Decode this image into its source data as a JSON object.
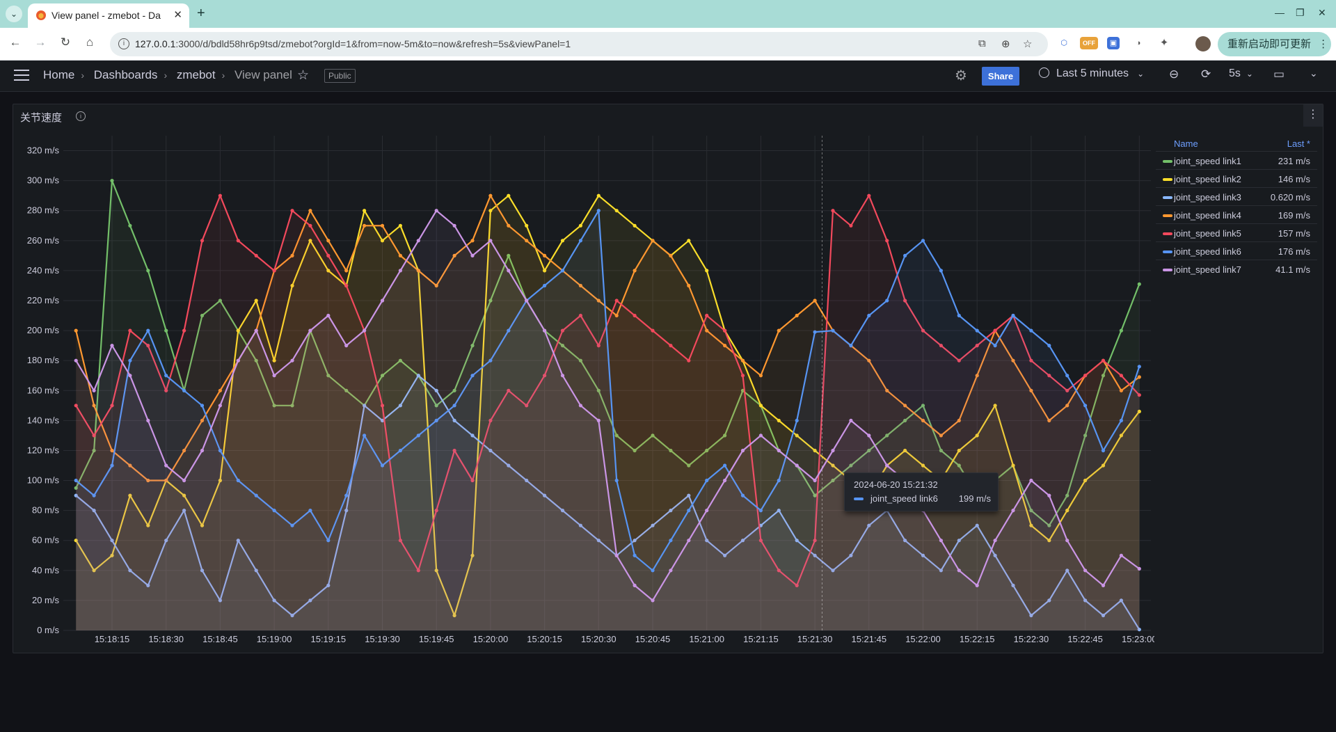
{
  "browser": {
    "tab_title": "View panel - zmebot - Da",
    "url_host": "127.0.0.1",
    "url_rest": ":3000/d/bdld58hr6p9tsd/zmebot?orgId=1&from=now-5m&to=now&refresh=5s&viewPanel=1",
    "update_button": "重新启动即可更新",
    "ext_off_badge": "OFF"
  },
  "grafana": {
    "breadcrumbs": [
      "Home",
      "Dashboards",
      "zmebot",
      "View panel"
    ],
    "public_badge": "Public",
    "share_label": "Share",
    "time_range": "Last 5 minutes",
    "refresh_interval": "5s"
  },
  "panel": {
    "title": "关节速度",
    "legend_header_name": "Name",
    "legend_header_last": "Last *",
    "tooltip": {
      "time": "2024-06-20 15:21:32",
      "series": "joint_speed link6",
      "value": "199 m/s"
    }
  },
  "chart_data": {
    "type": "line",
    "ylim": [
      0,
      330
    ],
    "yticks": [
      "0 m/s",
      "20 m/s",
      "40 m/s",
      "60 m/s",
      "80 m/s",
      "100 m/s",
      "120 m/s",
      "140 m/s",
      "160 m/s",
      "180 m/s",
      "200 m/s",
      "220 m/s",
      "240 m/s",
      "260 m/s",
      "280 m/s",
      "300 m/s",
      "320 m/s"
    ],
    "xticks": [
      "15:18:15",
      "15:18:30",
      "15:18:45",
      "15:19:00",
      "15:19:15",
      "15:19:30",
      "15:19:45",
      "15:20:00",
      "15:20:15",
      "15:20:30",
      "15:20:45",
      "15:21:00",
      "15:21:15",
      "15:21:30",
      "15:21:45",
      "15:22:00",
      "15:22:15",
      "15:22:30",
      "15:22:45",
      "15:23:00"
    ],
    "x": [
      "15:18:05",
      "15:18:10",
      "15:18:15",
      "15:18:20",
      "15:18:25",
      "15:18:30",
      "15:18:35",
      "15:18:40",
      "15:18:45",
      "15:18:50",
      "15:18:55",
      "15:19:00",
      "15:19:05",
      "15:19:10",
      "15:19:15",
      "15:19:20",
      "15:19:25",
      "15:19:30",
      "15:19:35",
      "15:19:40",
      "15:19:45",
      "15:19:50",
      "15:19:55",
      "15:20:00",
      "15:20:05",
      "15:20:10",
      "15:20:15",
      "15:20:20",
      "15:20:25",
      "15:20:30",
      "15:20:35",
      "15:20:40",
      "15:20:45",
      "15:20:50",
      "15:20:55",
      "15:21:00",
      "15:21:05",
      "15:21:10",
      "15:21:15",
      "15:21:20",
      "15:21:25",
      "15:21:30",
      "15:21:35",
      "15:21:40",
      "15:21:45",
      "15:21:50",
      "15:21:55",
      "15:22:00",
      "15:22:05",
      "15:22:10",
      "15:22:15",
      "15:22:20",
      "15:22:25",
      "15:22:30",
      "15:22:35",
      "15:22:40",
      "15:22:45",
      "15:22:50",
      "15:22:55",
      "15:23:00"
    ],
    "series": [
      {
        "name": "joint_speed link1",
        "last": "231 m/s",
        "color": "#73bf69",
        "values": [
          95,
          120,
          300,
          270,
          240,
          200,
          160,
          210,
          220,
          200,
          180,
          150,
          150,
          200,
          170,
          160,
          150,
          170,
          180,
          170,
          150,
          160,
          190,
          220,
          250,
          220,
          200,
          190,
          180,
          160,
          130,
          120,
          130,
          120,
          110,
          120,
          130,
          160,
          150,
          120,
          110,
          90,
          100,
          110,
          120,
          130,
          140,
          150,
          120,
          110,
          90,
          100,
          110,
          80,
          70,
          90,
          130,
          170,
          200,
          231
        ]
      },
      {
        "name": "joint_speed link2",
        "last": "146 m/s",
        "color": "#fade2a",
        "values": [
          60,
          40,
          50,
          90,
          70,
          100,
          90,
          70,
          100,
          200,
          220,
          180,
          230,
          260,
          240,
          230,
          280,
          260,
          270,
          240,
          40,
          10,
          50,
          280,
          290,
          270,
          240,
          260,
          270,
          290,
          280,
          270,
          260,
          250,
          260,
          240,
          200,
          180,
          150,
          140,
          130,
          120,
          110,
          100,
          90,
          110,
          120,
          110,
          100,
          120,
          130,
          150,
          110,
          70,
          60,
          80,
          100,
          110,
          130,
          146
        ]
      },
      {
        "name": "joint_speed link3",
        "last": "0.620 m/s",
        "color": "#8ab8ff",
        "values": [
          90,
          80,
          60,
          40,
          30,
          60,
          80,
          40,
          20,
          60,
          40,
          20,
          10,
          20,
          30,
          80,
          150,
          140,
          150,
          170,
          160,
          140,
          130,
          120,
          110,
          100,
          90,
          80,
          70,
          60,
          50,
          60,
          70,
          80,
          90,
          60,
          50,
          60,
          70,
          80,
          60,
          50,
          40,
          50,
          70,
          80,
          60,
          50,
          40,
          60,
          70,
          50,
          30,
          10,
          20,
          40,
          20,
          10,
          20,
          0.62
        ]
      },
      {
        "name": "joint_speed link4",
        "last": "169 m/s",
        "color": "#ff9830",
        "values": [
          200,
          150,
          120,
          110,
          100,
          100,
          120,
          140,
          160,
          180,
          200,
          240,
          250,
          280,
          260,
          240,
          270,
          270,
          250,
          240,
          230,
          250,
          260,
          290,
          270,
          260,
          250,
          240,
          230,
          220,
          210,
          240,
          260,
          250,
          230,
          200,
          190,
          180,
          170,
          200,
          210,
          220,
          200,
          190,
          180,
          160,
          150,
          140,
          130,
          140,
          170,
          200,
          180,
          160,
          140,
          150,
          170,
          180,
          160,
          169
        ]
      },
      {
        "name": "joint_speed link5",
        "last": "157 m/s",
        "color": "#f2495c",
        "values": [
          150,
          130,
          150,
          200,
          190,
          160,
          200,
          260,
          290,
          260,
          250,
          240,
          280,
          270,
          250,
          230,
          200,
          150,
          60,
          40,
          80,
          120,
          100,
          140,
          160,
          150,
          170,
          200,
          210,
          190,
          220,
          210,
          200,
          190,
          180,
          210,
          200,
          170,
          60,
          40,
          30,
          60,
          280,
          270,
          290,
          260,
          220,
          200,
          190,
          180,
          190,
          200,
          210,
          180,
          170,
          160,
          170,
          180,
          170,
          157
        ]
      },
      {
        "name": "joint_speed link6",
        "last": "176 m/s",
        "color": "#5794f2",
        "values": [
          100,
          90,
          110,
          180,
          200,
          170,
          160,
          150,
          120,
          100,
          90,
          80,
          70,
          80,
          60,
          90,
          130,
          110,
          120,
          130,
          140,
          150,
          170,
          180,
          200,
          220,
          230,
          240,
          260,
          280,
          100,
          50,
          40,
          60,
          80,
          100,
          110,
          90,
          80,
          100,
          140,
          199,
          200,
          190,
          210,
          220,
          250,
          260,
          240,
          210,
          200,
          190,
          210,
          200,
          190,
          170,
          150,
          120,
          140,
          176
        ]
      },
      {
        "name": "joint_speed link7",
        "last": "41.1 m/s",
        "color": "#ca95e5",
        "values": [
          180,
          160,
          190,
          170,
          140,
          110,
          100,
          120,
          150,
          180,
          200,
          170,
          180,
          200,
          210,
          190,
          200,
          220,
          240,
          260,
          280,
          270,
          250,
          260,
          240,
          220,
          200,
          170,
          150,
          140,
          50,
          30,
          20,
          40,
          60,
          80,
          100,
          120,
          130,
          120,
          110,
          100,
          120,
          140,
          130,
          110,
          100,
          80,
          60,
          40,
          30,
          60,
          80,
          100,
          90,
          60,
          40,
          30,
          50,
          41.1
        ]
      }
    ]
  }
}
